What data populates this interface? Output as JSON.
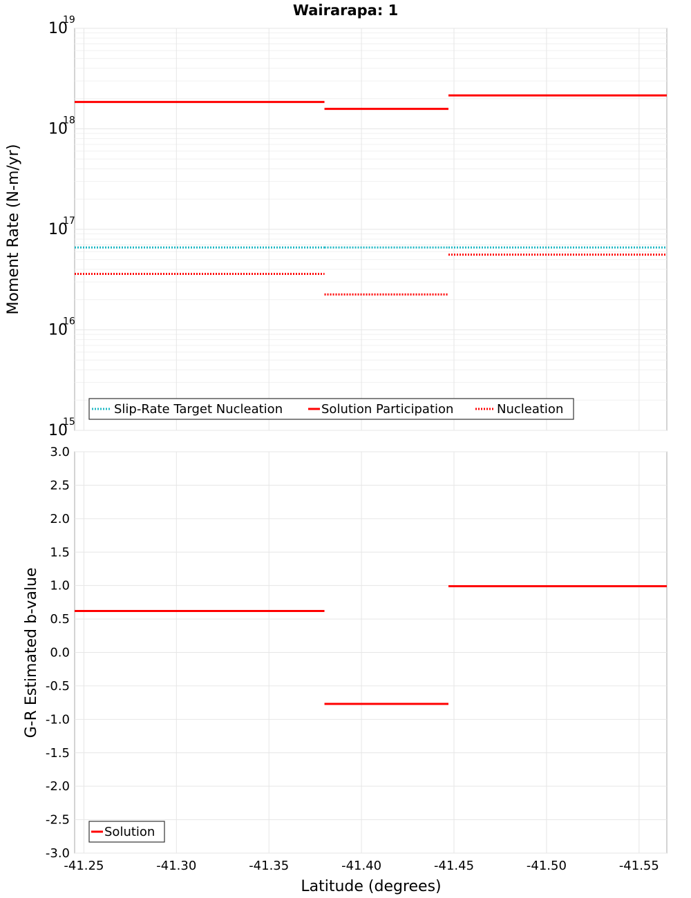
{
  "chart_data": [
    {
      "type": "line",
      "title": "Wairarapa: 1",
      "xlabel": "",
      "ylabel": "Moment Rate (N-m/yr)",
      "yscale": "log",
      "ylim": [
        1000000000000000.0,
        1e+19
      ],
      "xlim": [
        -41.245,
        -41.565
      ],
      "y_ticks": [
        {
          "base": "10",
          "exp": "15",
          "value": 1000000000000000.0
        },
        {
          "base": "10",
          "exp": "16",
          "value": 1e+16
        },
        {
          "base": "10",
          "exp": "17",
          "value": 1e+17
        },
        {
          "base": "10",
          "exp": "18",
          "value": 1e+18
        },
        {
          "base": "10",
          "exp": "19",
          "value": 1e+19
        }
      ],
      "legend_position": "bottom-left",
      "legend": [
        "Slip-Rate Target Nucleation",
        "Solution Participation",
        "Nucleation"
      ],
      "series": [
        {
          "name": "Slip-Rate Target Nucleation",
          "color": "#1fb8c4",
          "style": "dotted",
          "segments": [
            {
              "x": [
                -41.245,
                -41.38
              ],
              "y": 6.6e+16
            },
            {
              "x": [
                -41.38,
                -41.447
              ],
              "y": 6.6e+16
            },
            {
              "x": [
                -41.447,
                -41.565
              ],
              "y": 6.6e+16
            }
          ]
        },
        {
          "name": "Solution Participation",
          "color": "#ff0000",
          "style": "solid",
          "segments": [
            {
              "x": [
                -41.245,
                -41.38
              ],
              "y": 1.85e+18
            },
            {
              "x": [
                -41.38,
                -41.447
              ],
              "y": 1.58e+18
            },
            {
              "x": [
                -41.447,
                -41.565
              ],
              "y": 2.15e+18
            }
          ]
        },
        {
          "name": "Nucleation",
          "color": "#ff0000",
          "style": "dotted",
          "segments": [
            {
              "x": [
                -41.245,
                -41.38
              ],
              "y": 3.6e+16
            },
            {
              "x": [
                -41.38,
                -41.447
              ],
              "y": 2.25e+16
            },
            {
              "x": [
                -41.447,
                -41.565
              ],
              "y": 5.6e+16
            }
          ]
        }
      ]
    },
    {
      "type": "line",
      "title": "",
      "xlabel": "Latitude (degrees)",
      "ylabel": "G-R Estimated b-value",
      "ylim": [
        -3.0,
        3.0
      ],
      "xlim": [
        -41.245,
        -41.565
      ],
      "y_ticks": [
        "3.0",
        "2.5",
        "2.0",
        "1.5",
        "1.0",
        "0.5",
        "0.0",
        "-0.5",
        "-1.0",
        "-1.5",
        "-2.0",
        "-2.5",
        "-3.0"
      ],
      "x_ticks": [
        "-41.25",
        "-41.30",
        "-41.35",
        "-41.40",
        "-41.45",
        "-41.50",
        "-41.55"
      ],
      "legend_position": "bottom-left",
      "legend": [
        "Solution"
      ],
      "series": [
        {
          "name": "Solution",
          "color": "#ff0000",
          "style": "solid",
          "segments": [
            {
              "x": [
                -41.245,
                -41.38
              ],
              "y": 0.62
            },
            {
              "x": [
                -41.38,
                -41.447
              ],
              "y": -0.77
            },
            {
              "x": [
                -41.447,
                -41.565
              ],
              "y": 0.99
            }
          ]
        }
      ]
    }
  ]
}
